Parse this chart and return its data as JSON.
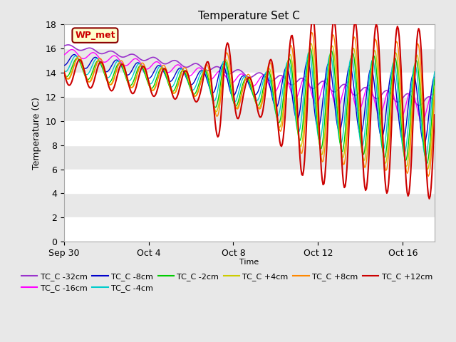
{
  "title": "Temperature Set C",
  "xlabel": "Time",
  "ylabel": "Temperature (C)",
  "ylim": [
    0,
    18
  ],
  "yticks": [
    0,
    2,
    4,
    6,
    8,
    10,
    12,
    14,
    16,
    18
  ],
  "wp_met_label": "WP_met",
  "wp_met_bg": "#ffffcc",
  "wp_met_border": "#8B0000",
  "wp_met_text": "#cc0000",
  "series_order": [
    "TC_C -32cm",
    "TC_C -16cm",
    "TC_C -8cm",
    "TC_C -4cm",
    "TC_C -2cm",
    "TC_C +4cm",
    "TC_C +8cm",
    "TC_C +12cm"
  ],
  "series_colors": [
    "#9933cc",
    "#ff00ff",
    "#0000cc",
    "#00cccc",
    "#00cc00",
    "#cccc00",
    "#ff8800",
    "#cc0000"
  ],
  "series_lw": [
    1.2,
    1.0,
    1.0,
    1.0,
    1.0,
    1.0,
    1.0,
    1.5
  ],
  "xtick_labels": [
    "Sep 30",
    "Oct 4",
    "Oct 8",
    "Oct 12",
    "Oct 16"
  ],
  "xtick_positions": [
    0,
    4,
    8,
    12,
    16
  ],
  "n_days": 17.5,
  "n_hours": 420
}
